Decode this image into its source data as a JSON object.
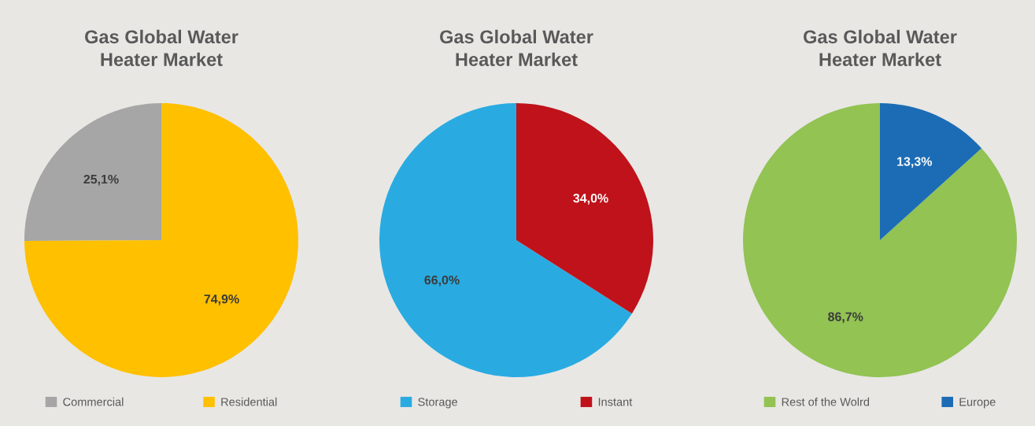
{
  "chart_data": [
    {
      "type": "pie",
      "title": "Gas Global Water\nHeater Market",
      "categories": [
        "Commercial",
        "Residential"
      ],
      "values": [
        25.1,
        74.9
      ],
      "colors": [
        "#a6a6a6",
        "#ffc000"
      ],
      "value_labels": [
        "25,1%",
        "74,9%"
      ],
      "legend": "bottom"
    },
    {
      "type": "pie",
      "title": "Gas Global Water\nHeater Market",
      "categories": [
        "Storage",
        "Instant"
      ],
      "values": [
        66.0,
        34.0
      ],
      "colors": [
        "#29abe2",
        "#c0121a"
      ],
      "value_labels": [
        "66,0%",
        "34,0%"
      ],
      "legend": "bottom"
    },
    {
      "type": "pie",
      "title": "Gas Global Water\nHeater Market",
      "categories": [
        "Rest of the Wolrd",
        "Europe"
      ],
      "values": [
        86.7,
        13.3
      ],
      "colors": [
        "#92c353",
        "#1c6cb5"
      ],
      "value_labels": [
        "86,7%",
        "13,3%"
      ],
      "legend": "bottom"
    }
  ]
}
